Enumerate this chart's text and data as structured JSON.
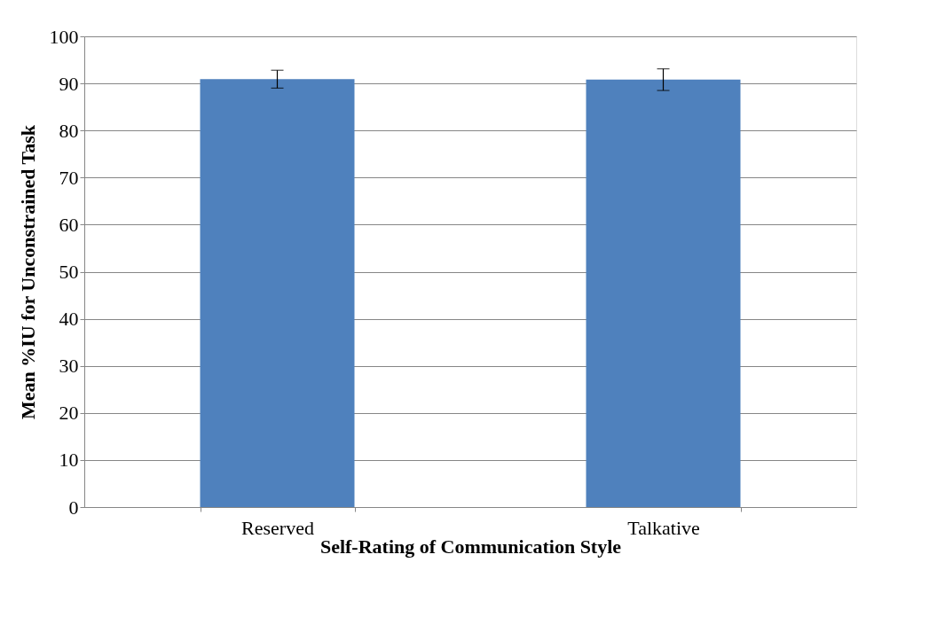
{
  "chart_data": {
    "type": "bar",
    "xlabel": "Self-Rating of Communication Style",
    "ylabel": "Mean %IU for Unconstrained Task",
    "categories": [
      "Reserved",
      "Talkative"
    ],
    "series": [
      {
        "color": "#4f81bd",
        "values": [
          90.9,
          90.8
        ],
        "errors": [
          1.9,
          2.3
        ]
      }
    ],
    "ylim": [
      0,
      100
    ],
    "yticks": [
      0,
      10,
      20,
      30,
      40,
      50,
      60,
      70,
      80,
      90,
      100
    ],
    "grid": "y",
    "legend": false
  }
}
